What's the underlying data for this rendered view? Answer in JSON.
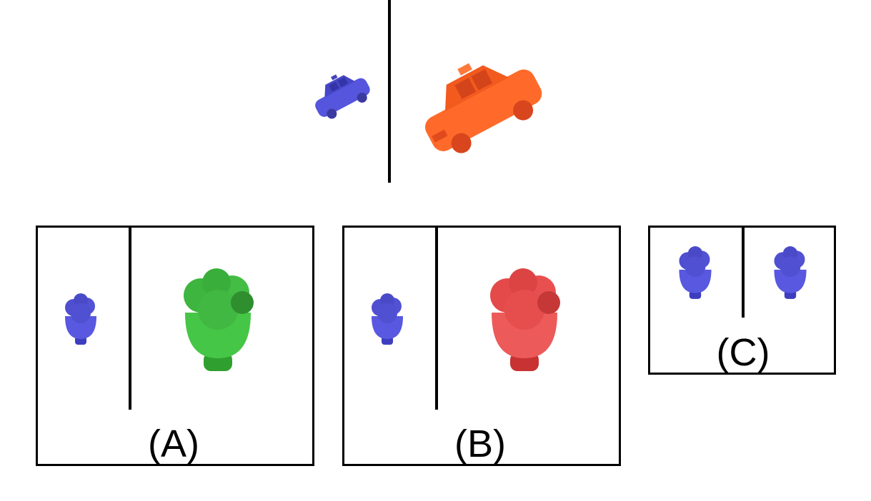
{
  "colors": {
    "small_object": "#5555dd",
    "car_large": "#ff6a2a",
    "option_a_object": "#3fbf3f",
    "option_b_object": "#e8484a",
    "separator": "#000000"
  },
  "example": {
    "left_object": "car-icon",
    "right_object": "car-icon"
  },
  "options": [
    {
      "label": "(A)",
      "left_object": "plant-pot-icon",
      "right_object": "plant-pot-icon"
    },
    {
      "label": "(B)",
      "left_object": "plant-pot-icon",
      "right_object": "plant-pot-icon"
    },
    {
      "label": "(C)",
      "left_object": "plant-pot-icon",
      "right_object": "plant-pot-icon"
    }
  ]
}
